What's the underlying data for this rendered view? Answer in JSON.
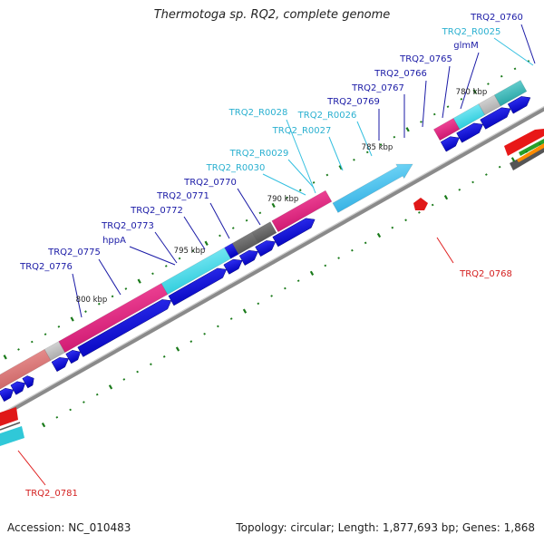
{
  "title": "Thermotoga sp. RQ2, complete genome",
  "footer": {
    "accession": "Accession: NC_010483",
    "summary": "Topology: circular; Length: 1,877,693 bp; Genes: 1,868"
  },
  "colors": {
    "backbone": "#8a8a8a",
    "cds_arrow": "#0000dd",
    "tick": "#1a7a1a",
    "label_gene": "#1a1aa6",
    "label_rna": "#2ab0d0",
    "label_red": "#d42020",
    "callout_line_rna": "#35c0e0",
    "callout_line_red": "#e02020"
  },
  "scale_labels": [
    "780 kbp",
    "785 kbp",
    "790 kbp",
    "795 kbp",
    "800 kbp"
  ],
  "gene_labels": [
    {
      "text": "TRQ2_0760",
      "kind": "gene"
    },
    {
      "text": "TRQ2_R0025",
      "kind": "rna"
    },
    {
      "text": "glmM",
      "kind": "gene"
    },
    {
      "text": "TRQ2_0765",
      "kind": "gene"
    },
    {
      "text": "TRQ2_0766",
      "kind": "gene"
    },
    {
      "text": "TRQ2_0767",
      "kind": "gene"
    },
    {
      "text": "TRQ2_0769",
      "kind": "gene"
    },
    {
      "text": "TRQ2_R0026",
      "kind": "rna"
    },
    {
      "text": "TRQ2_R0028",
      "kind": "rna"
    },
    {
      "text": "TRQ2_R0027",
      "kind": "rna"
    },
    {
      "text": "TRQ2_R0029",
      "kind": "rna"
    },
    {
      "text": "TRQ2_R0030",
      "kind": "rna"
    },
    {
      "text": "TRQ2_0770",
      "kind": "gene"
    },
    {
      "text": "TRQ2_0771",
      "kind": "gene"
    },
    {
      "text": "TRQ2_0772",
      "kind": "gene"
    },
    {
      "text": "TRQ2_0773",
      "kind": "gene"
    },
    {
      "text": "hppA",
      "kind": "gene"
    },
    {
      "text": "TRQ2_0775",
      "kind": "gene"
    },
    {
      "text": "TRQ2_0776",
      "kind": "gene"
    },
    {
      "text": "TRQ2_0768",
      "kind": "red"
    },
    {
      "text": "TRQ2_0781",
      "kind": "red"
    }
  ]
}
